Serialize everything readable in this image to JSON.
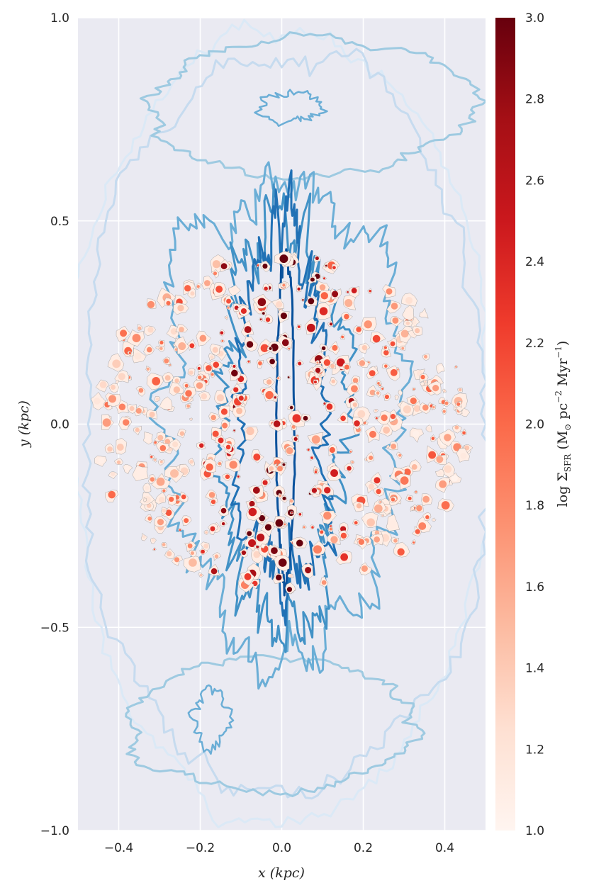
{
  "chart_data": {
    "type": "heatmap",
    "xlabel": "x (kpc)",
    "ylabel": "y (kpc)",
    "xlim": [
      -0.5,
      0.5
    ],
    "ylim": [
      -1.0,
      1.0
    ],
    "x_ticks": [
      -0.4,
      -0.2,
      0.0,
      0.2,
      0.4
    ],
    "x_tick_labels": [
      "−0.4",
      "−0.2",
      "0.0",
      "0.2",
      "0.4"
    ],
    "y_ticks": [
      1.0,
      0.5,
      0.0,
      -0.5,
      -1.0
    ],
    "y_tick_labels": [
      "1.0",
      "0.5",
      "0.0",
      "−0.5",
      "−1.0"
    ],
    "grid": true,
    "background": "#eaeaf2",
    "colorbar": {
      "label": "log Σ_SFR  (M⊙ pc⁻² Myr⁻¹)",
      "label_text": "log Σ",
      "label_sub": "SFR",
      "label_units": "(M",
      "label_units_sub": "⊙",
      "label_units_rest": " pc",
      "label_exp1": "−2",
      "label_units_mid": " Myr",
      "label_exp2": "−1",
      "label_close": ")",
      "range": [
        1.0,
        3.0
      ],
      "ticks": [
        3.0,
        2.8,
        2.6,
        2.4,
        2.2,
        2.0,
        1.8,
        1.6,
        1.4,
        1.2,
        1.0
      ],
      "tick_labels": [
        "3.0",
        "2.8",
        "2.6",
        "2.4",
        "2.2",
        "2.0",
        "1.8",
        "1.6",
        "1.4",
        "1.2",
        "1.0"
      ],
      "colormap": "Reds",
      "colors": [
        "#fff5f0",
        "#fee0d2",
        "#fcbba1",
        "#fc9272",
        "#fb6a4a",
        "#ef3b2c",
        "#cb181d",
        "#a50f15",
        "#67000d"
      ]
    },
    "contour_colors": [
      "#dbe9f6",
      "#c6dbef",
      "#9ecae1",
      "#6baed6",
      "#4292c6",
      "#2171b5",
      "#08519c"
    ],
    "sfr_clumps": {
      "seed": 7,
      "extent_x": [
        -0.46,
        0.46
      ],
      "extent_y": [
        -0.42,
        0.42
      ],
      "count": 520,
      "value_range": [
        1.0,
        3.0
      ],
      "central_concentration": "values peak near x = 0"
    }
  }
}
